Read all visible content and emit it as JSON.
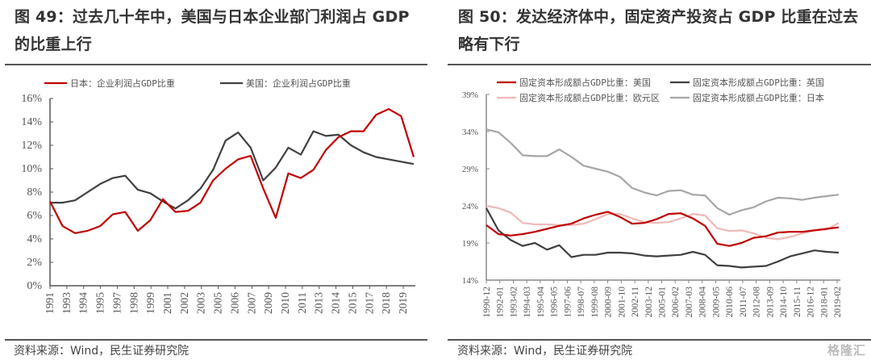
{
  "left": {
    "title": "图 49：过去几十年中，美国与日本企业部门利润占 GDP 的比重上行",
    "source": "资料来源：Wind，民生证券研究院"
  },
  "right": {
    "title": "图 50：发达经济体中，固定资产投资占 GDP 比重在过去略有下行",
    "source": "资料来源：Wind，民生证券研究院",
    "watermark": "格隆汇"
  },
  "chart_data": [
    {
      "type": "line",
      "title": "",
      "xlabel": "",
      "ylabel": "",
      "ylim": [
        0,
        16
      ],
      "yticks": [
        "0%",
        "2%",
        "4%",
        "6%",
        "8%",
        "10%",
        "12%",
        "14%",
        "16%"
      ],
      "ytick_values": [
        0,
        2,
        4,
        6,
        8,
        10,
        12,
        14,
        16
      ],
      "x": [
        1990,
        1991,
        1992,
        1993,
        1994,
        1995,
        1996,
        1997,
        1998,
        1999,
        2000,
        2001,
        2002,
        2003,
        2004,
        2005,
        2006,
        2007,
        2008,
        2009,
        2010,
        2011,
        2012,
        2013,
        2014,
        2015,
        2016,
        2017,
        2018,
        2019
      ],
      "xtick_labels": [
        "1991",
        "1993",
        "1994",
        "1995",
        "1997",
        "1998",
        "1999",
        "2001",
        "2002",
        "2003",
        "2005",
        "2006",
        "2007",
        "2009",
        "2010",
        "2011",
        "2013",
        "2014",
        "2015",
        "2017",
        "2018",
        "2019"
      ],
      "legend_position": "top",
      "grid": false,
      "series": [
        {
          "name": "日本：企业利润占GDP比重",
          "color": "#c00000",
          "values": [
            7.2,
            5.1,
            4.5,
            4.7,
            5.1,
            6.1,
            6.3,
            4.7,
            5.6,
            7.4,
            6.3,
            6.4,
            7.1,
            9.0,
            10.0,
            10.8,
            11.1,
            8.3,
            5.8,
            9.6,
            9.2,
            9.9,
            11.6,
            12.7,
            13.2,
            13.2,
            14.6,
            15.1,
            14.5,
            11.0
          ]
        },
        {
          "name": "美国：企业利润占GDP比重",
          "color": "#404040",
          "values": [
            7.1,
            7.1,
            7.3,
            8.0,
            8.7,
            9.2,
            9.4,
            8.2,
            7.9,
            7.2,
            6.6,
            7.3,
            8.3,
            9.9,
            12.4,
            13.1,
            11.8,
            9.0,
            10.1,
            11.8,
            11.2,
            13.2,
            12.8,
            12.9,
            12.0,
            11.4,
            11.0,
            10.8,
            10.6,
            10.4
          ]
        }
      ]
    },
    {
      "type": "line",
      "title": "",
      "xlabel": "",
      "ylabel": "",
      "ylim": [
        14,
        39
      ],
      "yticks": [
        "14%",
        "19%",
        "24%",
        "29%",
        "34%",
        "39%"
      ],
      "ytick_values": [
        14,
        19,
        24,
        29,
        34,
        39
      ],
      "x_count": 30,
      "xtick_labels": [
        "1990-12",
        "1992-01",
        "1993-02",
        "1994-03",
        "1995-04",
        "1996-05",
        "1997-06",
        "1998-07",
        "1999-08",
        "2000-09",
        "2001-10",
        "2002-11",
        "2003-12",
        "2005-01",
        "2006-02",
        "2007-03",
        "2008-04",
        "2009-05",
        "2010-06",
        "2011-07",
        "2012-08",
        "2013-09",
        "2014-10",
        "2015-11",
        "2016-12",
        "2018-01",
        "2019-02"
      ],
      "legend_position": "top",
      "grid": false,
      "series": [
        {
          "name": "固定资本形成额占GDP比重：美国",
          "color": "#c00000",
          "values": [
            21.4,
            20.2,
            20.0,
            20.2,
            20.5,
            20.9,
            21.3,
            21.6,
            22.3,
            22.8,
            23.2,
            22.5,
            21.6,
            21.7,
            22.2,
            22.9,
            23.0,
            22.3,
            21.3,
            18.9,
            18.6,
            19.0,
            19.7,
            19.9,
            20.4,
            20.5,
            20.5,
            20.7,
            20.9,
            21.1
          ]
        },
        {
          "name": "固定资本形成额占GDP比重：英国",
          "color": "#404040",
          "values": [
            23.7,
            20.7,
            19.4,
            18.6,
            19.0,
            18.1,
            18.7,
            17.1,
            17.4,
            17.4,
            17.7,
            17.7,
            17.6,
            17.3,
            17.2,
            17.3,
            17.4,
            17.8,
            17.4,
            16.0,
            15.9,
            15.7,
            15.8,
            15.9,
            16.5,
            17.2,
            17.6,
            18.0,
            17.8,
            17.7
          ]
        },
        {
          "name": "固定资本形成额占GDP比重：欧元区",
          "color": "#f0b8b8",
          "values": [
            24.0,
            23.7,
            23.1,
            21.7,
            21.5,
            21.5,
            21.4,
            21.4,
            21.6,
            22.2,
            22.9,
            22.9,
            22.3,
            21.8,
            21.7,
            21.8,
            22.3,
            22.9,
            22.7,
            21.0,
            20.6,
            20.7,
            20.3,
            19.7,
            19.5,
            19.8,
            20.3,
            20.7,
            20.8,
            21.7
          ]
        },
        {
          "name": "固定资本形成额占GDP比重：日本",
          "color": "#a6a6a6",
          "values": [
            34.3,
            33.9,
            32.5,
            30.8,
            30.7,
            30.7,
            31.6,
            30.6,
            29.4,
            29.0,
            28.6,
            27.9,
            26.4,
            25.8,
            25.4,
            26.0,
            26.1,
            25.5,
            25.4,
            23.7,
            22.8,
            23.4,
            23.8,
            24.6,
            25.1,
            25.0,
            24.8,
            25.1,
            25.3,
            25.5
          ]
        }
      ]
    }
  ]
}
